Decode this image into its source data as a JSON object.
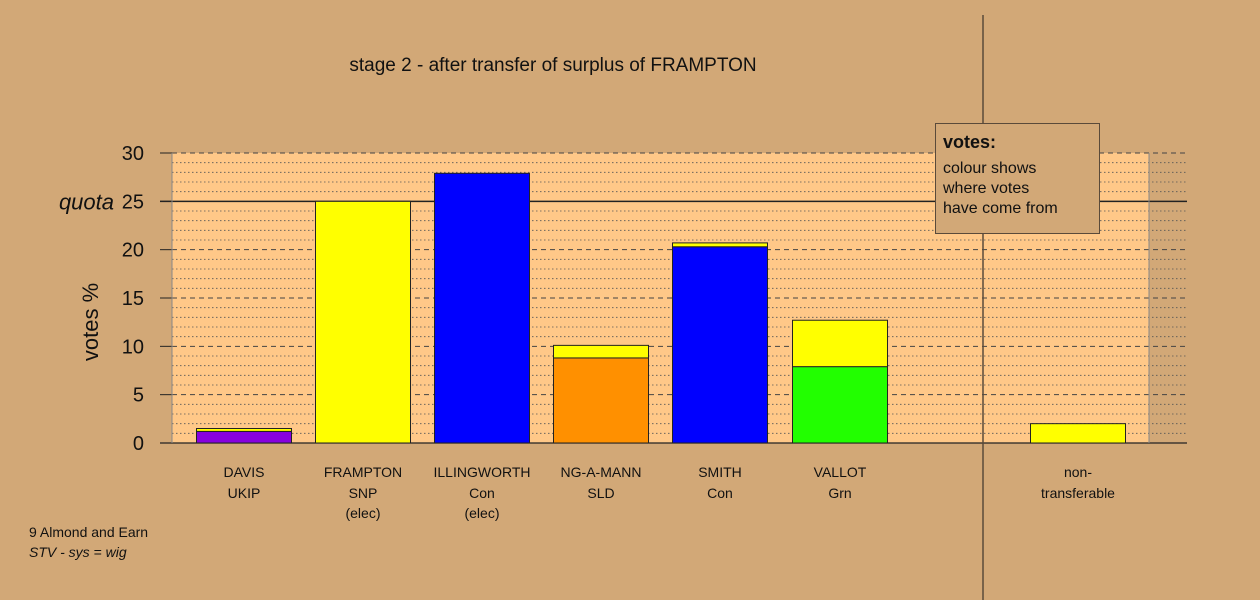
{
  "chart_data": {
    "type": "bar",
    "title": "stage 2 - after transfer of surplus of FRAMPTON",
    "ylabel": "votes %",
    "ylim": [
      0,
      30
    ],
    "yticks": [
      0,
      5,
      10,
      15,
      20,
      25,
      30
    ],
    "quota": {
      "label": "quota",
      "value": 25
    },
    "grid": true,
    "colors": {
      "UKIP": "#8800e0",
      "SNP": "#ffff00",
      "Con": "#0000ff",
      "SLD": "#ff9000",
      "Grn": "#22ff00"
    },
    "candidates": [
      {
        "name": "DAVIS",
        "party": "UKIP",
        "note": "",
        "segments": [
          {
            "party": "UKIP",
            "value": 1.2
          },
          {
            "party": "SNP",
            "value": 0.3
          }
        ]
      },
      {
        "name": "FRAMPTON",
        "party": "SNP",
        "note": "(elec)",
        "segments": [
          {
            "party": "SNP",
            "value": 25.0
          }
        ]
      },
      {
        "name": "ILLINGWORTH",
        "party": "Con",
        "note": "(elec)",
        "segments": [
          {
            "party": "Con",
            "value": 27.9
          }
        ]
      },
      {
        "name": "NG-A-MANN",
        "party": "SLD",
        "note": "",
        "segments": [
          {
            "party": "SLD",
            "value": 8.8
          },
          {
            "party": "SNP",
            "value": 1.3
          }
        ]
      },
      {
        "name": "SMITH",
        "party": "Con",
        "note": "",
        "segments": [
          {
            "party": "Con",
            "value": 20.3
          },
          {
            "party": "SNP",
            "value": 0.4
          }
        ]
      },
      {
        "name": "VALLOT",
        "party": "Grn",
        "note": "",
        "segments": [
          {
            "party": "Grn",
            "value": 7.9
          },
          {
            "party": "SNP",
            "value": 4.8
          }
        ]
      }
    ],
    "non_transferable": {
      "name": "non-",
      "party": "transferable",
      "segments": [
        {
          "party": "SNP",
          "value": 2.0
        }
      ]
    }
  },
  "legend": {
    "title": "votes:",
    "lines": [
      "colour shows",
      "where votes",
      "have come from"
    ]
  },
  "footer": {
    "ward": "9 Almond and Earn",
    "system": "STV - sys = wig"
  }
}
